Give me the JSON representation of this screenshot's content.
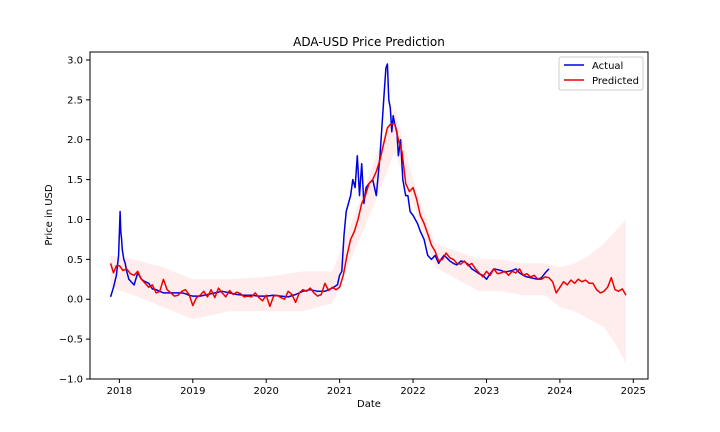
{
  "chart_data": {
    "type": "line",
    "title": "ADA-USD Price Prediction",
    "xlabel": "Date",
    "ylabel": "Price in USD",
    "xlim": [
      2017.6,
      2025.2
    ],
    "ylim": [
      -1.0,
      3.1
    ],
    "x_ticks": [
      {
        "value": 2018,
        "label": "2018"
      },
      {
        "value": 2019,
        "label": "2019"
      },
      {
        "value": 2020,
        "label": "2020"
      },
      {
        "value": 2021,
        "label": "2021"
      },
      {
        "value": 2022,
        "label": "2022"
      },
      {
        "value": 2023,
        "label": "2023"
      },
      {
        "value": 2024,
        "label": "2024"
      },
      {
        "value": 2025,
        "label": "2025"
      }
    ],
    "y_ticks": [
      {
        "value": -1.0,
        "label": "−1.0"
      },
      {
        "value": -0.5,
        "label": "−0.5"
      },
      {
        "value": 0.0,
        "label": "0.0"
      },
      {
        "value": 0.5,
        "label": "0.5"
      },
      {
        "value": 1.0,
        "label": "1.0"
      },
      {
        "value": 1.5,
        "label": "1.5"
      },
      {
        "value": 2.0,
        "label": "2.0"
      },
      {
        "value": 2.5,
        "label": "2.5"
      },
      {
        "value": 3.0,
        "label": "3.0"
      }
    ],
    "grid": false,
    "legend_position": "top-right",
    "series": [
      {
        "name": "Actual",
        "color": "#0000dd",
        "x": [
          2017.88,
          2017.92,
          2017.96,
          2017.99,
          2018.01,
          2018.02,
          2018.03,
          2018.04,
          2018.06,
          2018.08,
          2018.1,
          2018.13,
          2018.16,
          2018.2,
          2018.25,
          2018.3,
          2018.35,
          2018.4,
          2018.45,
          2018.5,
          2018.55,
          2018.6,
          2018.65,
          2018.7,
          2018.75,
          2018.8,
          2018.85,
          2018.9,
          2018.95,
          2019.0,
          2019.1,
          2019.2,
          2019.3,
          2019.4,
          2019.5,
          2019.6,
          2019.7,
          2019.8,
          2019.9,
          2020.0,
          2020.1,
          2020.2,
          2020.3,
          2020.4,
          2020.5,
          2020.6,
          2020.7,
          2020.8,
          2020.9,
          2020.97,
          2021.0,
          2021.03,
          2021.06,
          2021.09,
          2021.12,
          2021.15,
          2021.18,
          2021.21,
          2021.24,
          2021.27,
          2021.3,
          2021.33,
          2021.36,
          2021.4,
          2021.45,
          2021.5,
          2021.55,
          2021.6,
          2021.63,
          2021.65,
          2021.67,
          2021.69,
          2021.71,
          2021.73,
          2021.75,
          2021.78,
          2021.8,
          2021.83,
          2021.86,
          2021.9,
          2021.93,
          2021.96,
          2022.0,
          2022.03,
          2022.06,
          2022.1,
          2022.15,
          2022.2,
          2022.25,
          2022.3,
          2022.35,
          2022.38,
          2022.42,
          2022.46,
          2022.5,
          2022.55,
          2022.6,
          2022.65,
          2022.7,
          2022.75,
          2022.8,
          2022.85,
          2022.9,
          2022.95,
          2023.0,
          2023.05,
          2023.1,
          2023.15,
          2023.2,
          2023.25,
          2023.3,
          2023.35,
          2023.4,
          2023.45,
          2023.5,
          2023.55,
          2023.6,
          2023.65,
          2023.7,
          2023.75,
          2023.8,
          2023.85
        ],
        "y": [
          0.03,
          0.15,
          0.3,
          0.55,
          1.1,
          0.85,
          0.75,
          0.62,
          0.5,
          0.45,
          0.35,
          0.25,
          0.22,
          0.18,
          0.33,
          0.25,
          0.22,
          0.2,
          0.13,
          0.12,
          0.1,
          0.08,
          0.08,
          0.08,
          0.08,
          0.08,
          0.08,
          0.07,
          0.05,
          0.04,
          0.04,
          0.06,
          0.08,
          0.1,
          0.08,
          0.06,
          0.05,
          0.05,
          0.04,
          0.04,
          0.05,
          0.04,
          0.03,
          0.06,
          0.1,
          0.12,
          0.1,
          0.1,
          0.14,
          0.18,
          0.3,
          0.35,
          0.8,
          1.1,
          1.2,
          1.3,
          1.5,
          1.4,
          1.8,
          1.3,
          1.7,
          1.2,
          1.4,
          1.45,
          1.5,
          1.3,
          1.8,
          2.5,
          2.9,
          2.95,
          2.5,
          2.4,
          2.1,
          2.3,
          2.2,
          2.1,
          1.8,
          2.0,
          1.5,
          1.3,
          1.3,
          1.1,
          1.05,
          1.0,
          0.95,
          0.85,
          0.75,
          0.55,
          0.5,
          0.55,
          0.45,
          0.5,
          0.55,
          0.52,
          0.48,
          0.45,
          0.43,
          0.48,
          0.47,
          0.44,
          0.38,
          0.35,
          0.32,
          0.3,
          0.25,
          0.32,
          0.38,
          0.37,
          0.36,
          0.34,
          0.35,
          0.36,
          0.38,
          0.33,
          0.3,
          0.28,
          0.27,
          0.26,
          0.25,
          0.27,
          0.33,
          0.38
        ]
      },
      {
        "name": "Predicted",
        "color": "#ee0000",
        "x": [
          2017.88,
          2017.92,
          2017.96,
          2018.0,
          2018.05,
          2018.1,
          2018.15,
          2018.2,
          2018.25,
          2018.3,
          2018.35,
          2018.4,
          2018.45,
          2018.5,
          2018.55,
          2018.6,
          2018.65,
          2018.7,
          2018.75,
          2018.8,
          2018.85,
          2018.9,
          2018.95,
          2019.0,
          2019.05,
          2019.1,
          2019.15,
          2019.2,
          2019.25,
          2019.3,
          2019.35,
          2019.4,
          2019.45,
          2019.5,
          2019.55,
          2019.6,
          2019.65,
          2019.7,
          2019.75,
          2019.8,
          2019.85,
          2019.9,
          2019.95,
          2020.0,
          2020.05,
          2020.1,
          2020.15,
          2020.2,
          2020.25,
          2020.3,
          2020.35,
          2020.4,
          2020.45,
          2020.5,
          2020.55,
          2020.6,
          2020.65,
          2020.7,
          2020.75,
          2020.8,
          2020.85,
          2020.9,
          2020.95,
          2021.0,
          2021.05,
          2021.1,
          2021.15,
          2021.2,
          2021.25,
          2021.3,
          2021.35,
          2021.4,
          2021.45,
          2021.5,
          2021.55,
          2021.6,
          2021.65,
          2021.7,
          2021.75,
          2021.8,
          2021.85,
          2021.9,
          2021.95,
          2022.0,
          2022.05,
          2022.1,
          2022.15,
          2022.2,
          2022.25,
          2022.3,
          2022.35,
          2022.4,
          2022.45,
          2022.5,
          2022.55,
          2022.6,
          2022.65,
          2022.7,
          2022.75,
          2022.8,
          2022.85,
          2022.9,
          2022.95,
          2023.0,
          2023.05,
          2023.1,
          2023.15,
          2023.2,
          2023.25,
          2023.3,
          2023.35,
          2023.4,
          2023.45,
          2023.5,
          2023.55,
          2023.6,
          2023.65,
          2023.7,
          2023.75,
          2023.8,
          2023.85,
          2023.9,
          2023.95,
          2024.0,
          2024.05,
          2024.1,
          2024.15,
          2024.2,
          2024.25,
          2024.3,
          2024.35,
          2024.4,
          2024.45,
          2024.5,
          2024.55,
          2024.6,
          2024.65,
          2024.7,
          2024.75,
          2024.8,
          2024.85,
          2024.9
        ],
        "y": [
          0.45,
          0.33,
          0.42,
          0.42,
          0.36,
          0.38,
          0.32,
          0.3,
          0.35,
          0.25,
          0.2,
          0.15,
          0.18,
          0.08,
          0.1,
          0.25,
          0.12,
          0.08,
          0.04,
          0.05,
          0.1,
          0.12,
          0.06,
          -0.08,
          0.02,
          0.05,
          0.1,
          0.03,
          0.12,
          0.02,
          0.14,
          0.08,
          0.03,
          0.11,
          0.06,
          0.09,
          0.07,
          0.03,
          0.04,
          0.03,
          0.08,
          0.02,
          -0.02,
          0.05,
          -0.09,
          0.04,
          0.05,
          0.02,
          0.0,
          0.1,
          0.06,
          -0.04,
          0.08,
          0.12,
          0.1,
          0.14,
          0.08,
          0.04,
          0.06,
          0.2,
          0.11,
          0.15,
          0.12,
          0.15,
          0.3,
          0.55,
          0.75,
          0.85,
          1.0,
          1.2,
          1.3,
          1.45,
          1.5,
          1.6,
          1.75,
          1.95,
          2.15,
          2.2,
          2.2,
          2.0,
          1.85,
          1.45,
          1.35,
          1.4,
          1.25,
          1.05,
          0.95,
          0.82,
          0.68,
          0.6,
          0.48,
          0.5,
          0.58,
          0.52,
          0.5,
          0.45,
          0.44,
          0.48,
          0.42,
          0.45,
          0.38,
          0.33,
          0.28,
          0.35,
          0.3,
          0.38,
          0.32,
          0.33,
          0.35,
          0.3,
          0.35,
          0.33,
          0.38,
          0.3,
          0.32,
          0.28,
          0.3,
          0.25,
          0.25,
          0.28,
          0.27,
          0.22,
          0.08,
          0.15,
          0.22,
          0.18,
          0.24,
          0.2,
          0.25,
          0.22,
          0.24,
          0.2,
          0.2,
          0.12,
          0.08,
          0.1,
          0.15,
          0.27,
          0.12,
          0.1,
          0.13,
          0.05
        ]
      }
    ],
    "band": {
      "color": "#ffcccc",
      "x": [
        2017.88,
        2018.2,
        2018.6,
        2019.0,
        2019.5,
        2020.0,
        2020.5,
        2020.9,
        2021.2,
        2021.5,
        2021.75,
        2022.0,
        2022.3,
        2022.6,
        2022.9,
        2023.2,
        2023.5,
        2023.8,
        2024.0,
        2024.2,
        2024.4,
        2024.6,
        2024.75,
        2024.9
      ],
      "lower": [
        0.15,
        0.05,
        -0.1,
        -0.25,
        -0.15,
        -0.15,
        -0.15,
        -0.05,
        0.6,
        1.25,
        1.85,
        1.2,
        0.4,
        0.25,
        0.1,
        0.1,
        0.05,
        0.05,
        -0.1,
        -0.15,
        -0.25,
        -0.35,
        -0.55,
        -0.8
      ],
      "upper": [
        0.55,
        0.5,
        0.4,
        0.25,
        0.25,
        0.28,
        0.35,
        0.35,
        1.05,
        1.8,
        2.4,
        1.5,
        0.7,
        0.6,
        0.5,
        0.5,
        0.45,
        0.45,
        0.4,
        0.45,
        0.55,
        0.7,
        0.85,
        1.0
      ]
    }
  }
}
